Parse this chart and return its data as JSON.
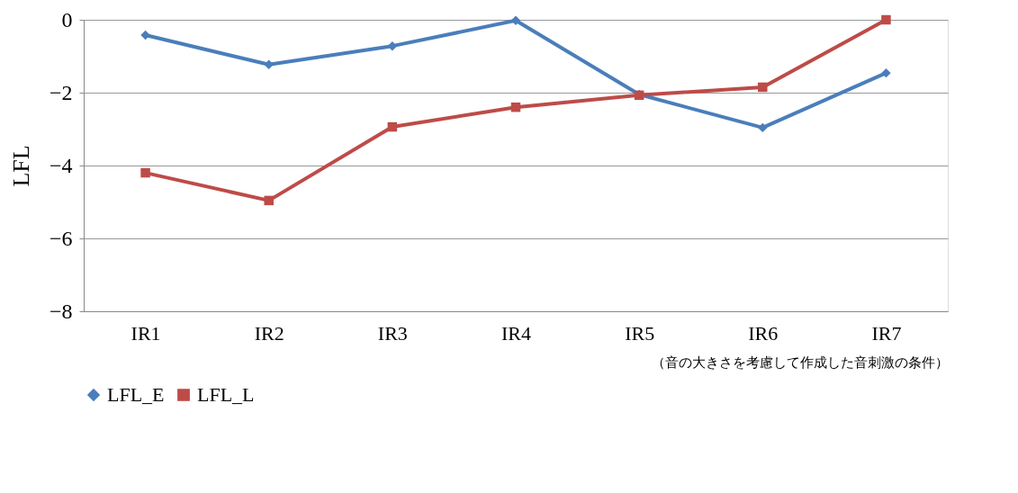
{
  "chart_data": {
    "type": "line",
    "ylabel": "LFL",
    "xlabel": "（音の大きさを考慮して作成した音刺激の条件）",
    "categories": [
      "IR1",
      "IR2",
      "IR3",
      "IR4",
      "IR5",
      "IR6",
      "IR7"
    ],
    "series": [
      {
        "name": "LFL_E",
        "color": "#4a7ebb",
        "marker": "diamond",
        "values": [
          -0.42,
          -1.23,
          -0.72,
          -0.02,
          -2.05,
          -2.96,
          -1.46
        ]
      },
      {
        "name": "LFL_L",
        "color": "#be4b48",
        "marker": "square",
        "values": [
          -4.2,
          -4.96,
          -2.94,
          -2.4,
          -2.07,
          -1.85,
          0
        ]
      }
    ],
    "ylim": [
      -8,
      0
    ],
    "yticks": [
      {
        "value": -8,
        "label": "−8"
      },
      {
        "value": -6,
        "label": "−6"
      },
      {
        "value": -4,
        "label": "−4"
      },
      {
        "value": -2,
        "label": "−2"
      },
      0
    ],
    "grid": "y",
    "legend": "bottom",
    "line_style": "solid"
  }
}
